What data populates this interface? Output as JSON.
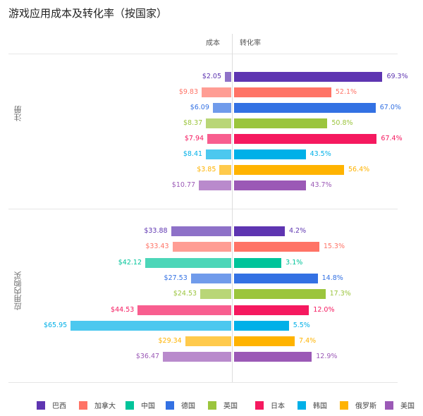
{
  "chart_data": {
    "type": "bar",
    "title": "游戏应用成本及转化率（按国家）",
    "column_headers": [
      "成本",
      "转化率"
    ],
    "countries": [
      "巴西",
      "加拿大",
      "中国",
      "德国",
      "英国",
      "日本",
      "韩国",
      "俄罗斯",
      "美国"
    ],
    "colors": {
      "巴西": "#5e35b1",
      "加拿大": "#ff7366",
      "中国": "#00c49a",
      "德国": "#3371e3",
      "英国": "#9bc53d",
      "日本": "#f5195f",
      "韩国": "#00b0e8",
      "俄罗斯": "#ffb300",
      "美国": "#9b59b6"
    },
    "legend_position": "bottom",
    "sections": [
      {
        "name": "注册",
        "rows": [
          {
            "country": "巴西",
            "cost": 2.05,
            "cost_label": "$2.05",
            "rate": 69.3,
            "rate_label": "69.3%"
          },
          {
            "country": "加拿大",
            "cost": 9.83,
            "cost_label": "$9.83",
            "rate": 52.1,
            "rate_label": "52.1%"
          },
          {
            "country": "德国",
            "cost": 6.09,
            "cost_label": "$6.09",
            "rate": 67.0,
            "rate_label": "67.0%"
          },
          {
            "country": "英国",
            "cost": 8.37,
            "cost_label": "$8.37",
            "rate": 50.8,
            "rate_label": "50.8%"
          },
          {
            "country": "日本",
            "cost": 7.94,
            "cost_label": "$7.94",
            "rate": 67.4,
            "rate_label": "67.4%"
          },
          {
            "country": "韩国",
            "cost": 8.41,
            "cost_label": "$8.41",
            "rate": 43.5,
            "rate_label": "43.5%"
          },
          {
            "country": "俄罗斯",
            "cost": 3.85,
            "cost_label": "$3.85",
            "rate": 56.4,
            "rate_label": "56.4%"
          },
          {
            "country": "美国",
            "cost": 10.77,
            "cost_label": "$10.77",
            "rate": 43.7,
            "rate_label": "43.7%"
          }
        ]
      },
      {
        "name": "应用内购买",
        "rows": [
          {
            "country": "巴西",
            "cost": 33.88,
            "cost_label": "$33.88",
            "rate": 4.2,
            "rate_label": "4.2%"
          },
          {
            "country": "加拿大",
            "cost": 33.43,
            "cost_label": "$33.43",
            "rate": 15.3,
            "rate_label": "15.3%"
          },
          {
            "country": "中国",
            "cost": 42.12,
            "cost_label": "$42.12",
            "rate": 3.1,
            "rate_label": "3.1%"
          },
          {
            "country": "德国",
            "cost": 27.53,
            "cost_label": "$27.53",
            "rate": 14.8,
            "rate_label": "14.8%"
          },
          {
            "country": "英国",
            "cost": 24.53,
            "cost_label": "$24.53",
            "rate": 17.3,
            "rate_label": "17.3%"
          },
          {
            "country": "日本",
            "cost": 44.53,
            "cost_label": "$44.53",
            "rate": 12.0,
            "rate_label": "12.0%"
          },
          {
            "country": "韩国",
            "cost": 65.95,
            "cost_label": "$65.95",
            "rate": 5.5,
            "rate_label": "5.5%"
          },
          {
            "country": "俄罗斯",
            "cost": 29.34,
            "cost_label": "$29.34",
            "rate": 7.4,
            "rate_label": "7.4%"
          },
          {
            "country": "美国",
            "cost": 36.47,
            "cost_label": "$36.47",
            "rate": 12.9,
            "rate_label": "12.9%"
          }
        ]
      }
    ]
  }
}
